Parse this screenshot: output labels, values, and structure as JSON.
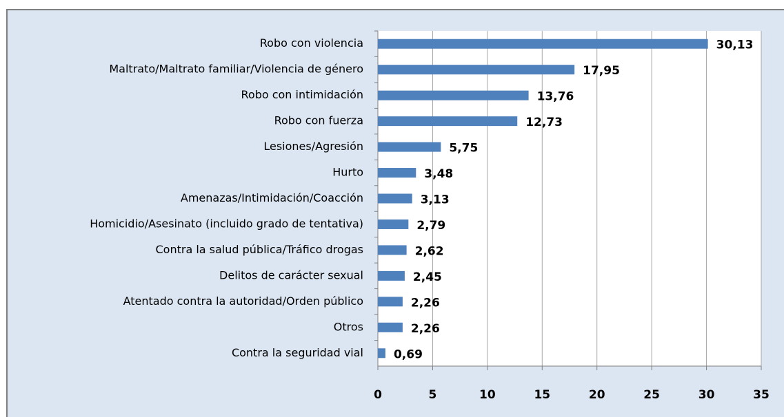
{
  "chart_data": {
    "type": "hbar",
    "categories": [
      "Robo con violencia",
      "Maltrato/Maltrato familiar/Violencia de género",
      "Robo con intimidación",
      "Robo con fuerza",
      "Lesiones/Agresión",
      "Hurto",
      "Amenazas/Intimidación/Coacción",
      "Homicidio/Asesinato (incluido grado de tentativa)",
      "Contra la salud pública/Tráfico drogas",
      "Delitos de carácter sexual",
      "Atentado contra la autoridad/Orden público",
      "Otros",
      "Contra la seguridad vial"
    ],
    "values": [
      30.13,
      17.95,
      13.76,
      12.73,
      5.75,
      3.48,
      3.13,
      2.79,
      2.62,
      2.45,
      2.26,
      2.26,
      0.69
    ],
    "value_labels": [
      "30,13",
      "17,95",
      "13,76",
      "12,73",
      "5,75",
      "3,48",
      "3,13",
      "2,79",
      "2,62",
      "2,45",
      "2,26",
      "2,26",
      "0,69"
    ],
    "color": "#4f81bd",
    "xlim": [
      0,
      35
    ],
    "xticks": [
      0,
      5,
      10,
      15,
      20,
      25,
      30,
      35
    ],
    "grid": true
  }
}
